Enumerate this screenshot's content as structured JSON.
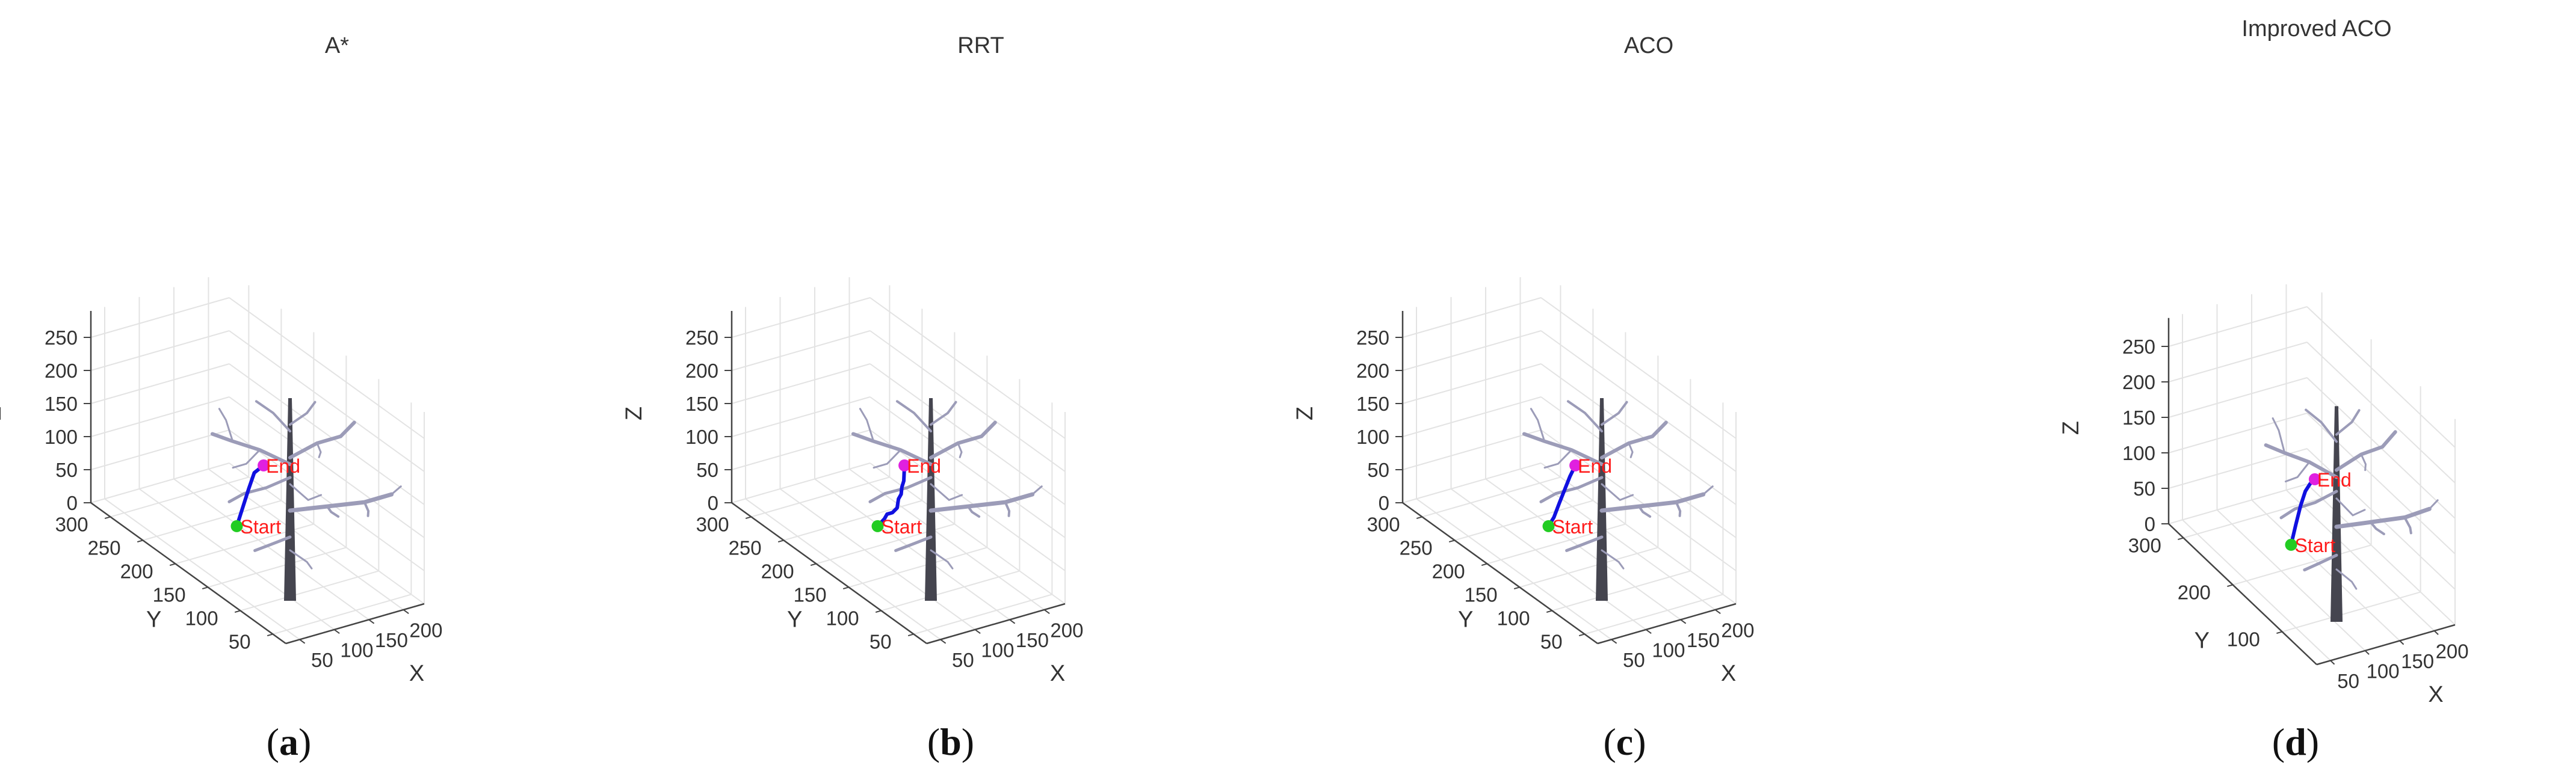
{
  "chart_data": [
    {
      "type": "3d-line",
      "id": "a",
      "title": "A*",
      "panel_label": "a",
      "xlabel": "X",
      "ylabel": "Y",
      "zlabel": "Z",
      "xticks": [
        50,
        100,
        150,
        200
      ],
      "yticks": [
        50,
        100,
        150,
        200,
        250,
        300
      ],
      "zticks": [
        0,
        50,
        100,
        150,
        200,
        250
      ],
      "start": {
        "label": "Start",
        "x": 100,
        "y": 180,
        "z": 50
      },
      "end": {
        "label": "End",
        "x": 120,
        "y": 160,
        "z": 150
      },
      "path": [
        [
          100,
          180,
          50
        ],
        [
          105,
          176,
          80
        ],
        [
          110,
          172,
          110
        ],
        [
          114,
          168,
          135
        ],
        [
          120,
          160,
          150
        ]
      ],
      "colors": {
        "path": "#1010e0",
        "start": "#22cc22",
        "end": "#e020e0",
        "tree": "#9c9cb8",
        "trunk": "#45454f"
      }
    },
    {
      "type": "3d-line",
      "id": "b",
      "title": "RRT",
      "panel_label": "b",
      "xlabel": "X",
      "ylabel": "Y",
      "zlabel": "Z",
      "xticks": [
        50,
        100,
        150,
        200
      ],
      "yticks": [
        50,
        100,
        150,
        200,
        250,
        300
      ],
      "zticks": [
        0,
        50,
        100,
        150,
        200,
        250
      ],
      "start": {
        "label": "Start",
        "x": 100,
        "y": 180,
        "z": 50
      },
      "end": {
        "label": "End",
        "x": 120,
        "y": 160,
        "z": 150
      },
      "path": [
        [
          100,
          180,
          50
        ],
        [
          106,
          176,
          62
        ],
        [
          108,
          174,
          70
        ],
        [
          112,
          170,
          74
        ],
        [
          116,
          167,
          82
        ],
        [
          117,
          166,
          96
        ],
        [
          119,
          164,
          104
        ],
        [
          119,
          163,
          115
        ],
        [
          120,
          161,
          126
        ],
        [
          120,
          160,
          150
        ]
      ],
      "colors": {
        "path": "#1010e0",
        "start": "#22cc22",
        "end": "#e020e0",
        "tree": "#9c9cb8",
        "trunk": "#45454f"
      }
    },
    {
      "type": "3d-line",
      "id": "c",
      "title": "ACO",
      "panel_label": "c",
      "xlabel": "X",
      "ylabel": "Y",
      "zlabel": "Z",
      "xticks": [
        50,
        100,
        150,
        200
      ],
      "yticks": [
        50,
        100,
        150,
        200,
        250,
        300
      ],
      "zticks": [
        0,
        50,
        100,
        150,
        200,
        250
      ],
      "start": {
        "label": "Start",
        "x": 100,
        "y": 180,
        "z": 50
      },
      "end": {
        "label": "End",
        "x": 120,
        "y": 160,
        "z": 150
      },
      "path": [
        [
          100,
          180,
          50
        ],
        [
          104,
          176,
          65
        ],
        [
          108,
          172,
          88
        ],
        [
          112,
          168,
          110
        ],
        [
          116,
          164,
          132
        ],
        [
          120,
          160,
          150
        ]
      ],
      "colors": {
        "path": "#1010e0",
        "start": "#22cc22",
        "end": "#e020e0",
        "tree": "#9c9cb8",
        "trunk": "#45454f"
      }
    },
    {
      "type": "3d-line",
      "id": "d",
      "title": "Improved ACO",
      "panel_label": "d",
      "xlabel": "X",
      "ylabel": "Y",
      "zlabel": "Z",
      "xticks": [
        50,
        100,
        150,
        200
      ],
      "yticks": [
        100,
        200,
        300
      ],
      "zticks": [
        0,
        50,
        100,
        150,
        200,
        250
      ],
      "start": {
        "label": "Start",
        "x": 100,
        "y": 180,
        "z": 50
      },
      "end": {
        "label": "End",
        "x": 120,
        "y": 160,
        "z": 150
      },
      "path": [
        [
          100,
          180,
          50
        ],
        [
          104,
          176,
          80
        ],
        [
          108,
          172,
          108
        ],
        [
          112,
          168,
          130
        ],
        [
          116,
          164,
          142
        ],
        [
          120,
          160,
          150
        ]
      ],
      "colors": {
        "path": "#1010e0",
        "start": "#22cc22",
        "end": "#e020e0",
        "tree": "#9c9cb8",
        "trunk": "#45454f"
      }
    }
  ]
}
